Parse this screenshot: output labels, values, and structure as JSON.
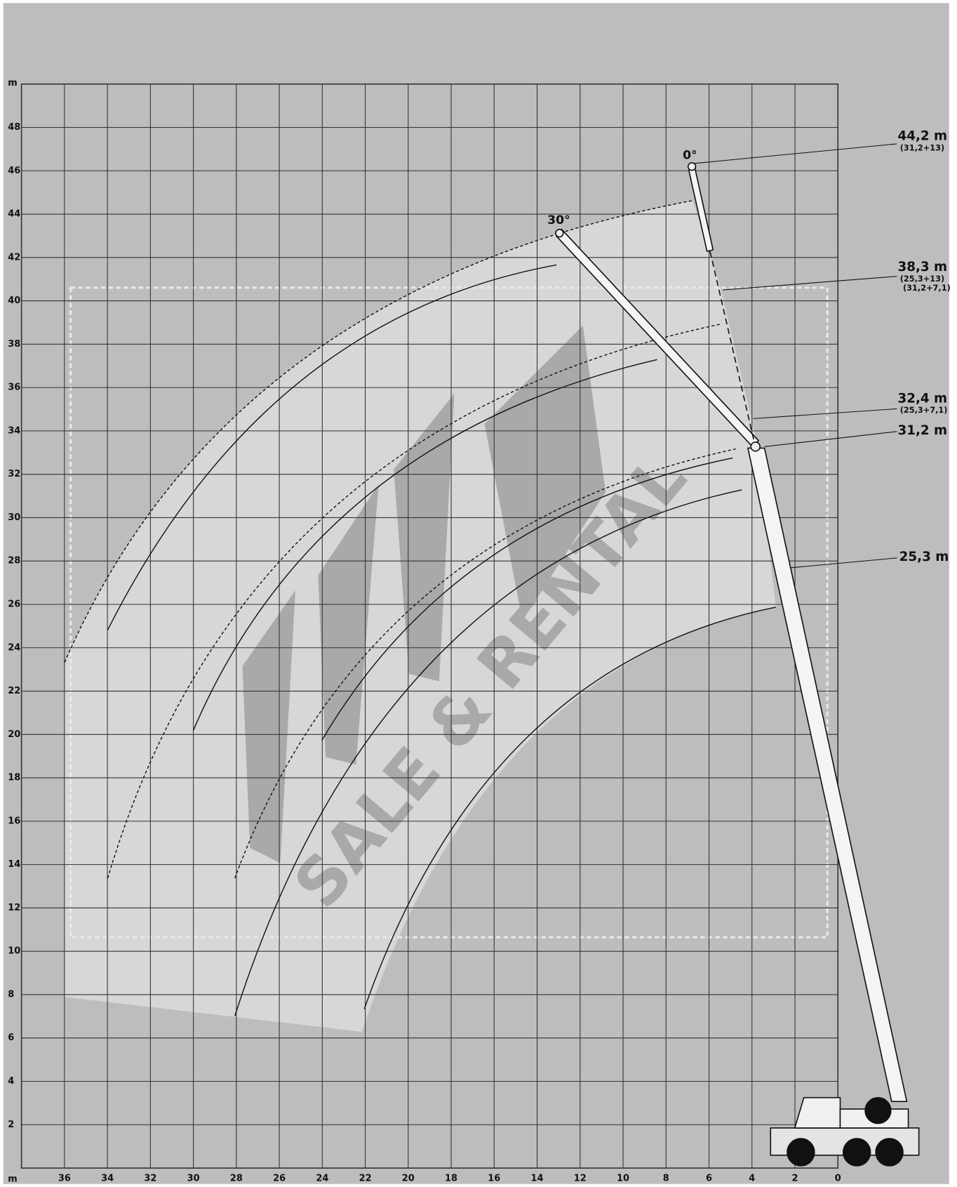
{
  "chart_data": {
    "type": "range",
    "x_unit": "m",
    "y_unit": "m",
    "xlim": [
      38,
      0
    ],
    "ylim": [
      0,
      50
    ],
    "xticks": [
      36,
      34,
      32,
      30,
      28,
      26,
      24,
      22,
      20,
      18,
      16,
      14,
      12,
      10,
      8,
      6,
      4,
      2,
      0
    ],
    "yticks": [
      2,
      4,
      6,
      8,
      10,
      12,
      14,
      16,
      18,
      20,
      22,
      24,
      26,
      28,
      30,
      32,
      34,
      36,
      38,
      40,
      42,
      44,
      46,
      48
    ],
    "grid": true,
    "boom_labels": [
      {
        "length": "44,2 m",
        "config": [
          "(31,2+13)"
        ]
      },
      {
        "length": "38,3 m",
        "config": [
          "(25,3+13)",
          "(31,2+7,1)"
        ]
      },
      {
        "length": "32,4 m",
        "config": [
          "(25,3+7,1)"
        ]
      },
      {
        "length": "31,2 m",
        "config": []
      },
      {
        "length": "25,3 m",
        "config": []
      }
    ],
    "angle_labels": [
      "0°",
      "30°"
    ],
    "watermark": "SALE & RENTAL"
  }
}
